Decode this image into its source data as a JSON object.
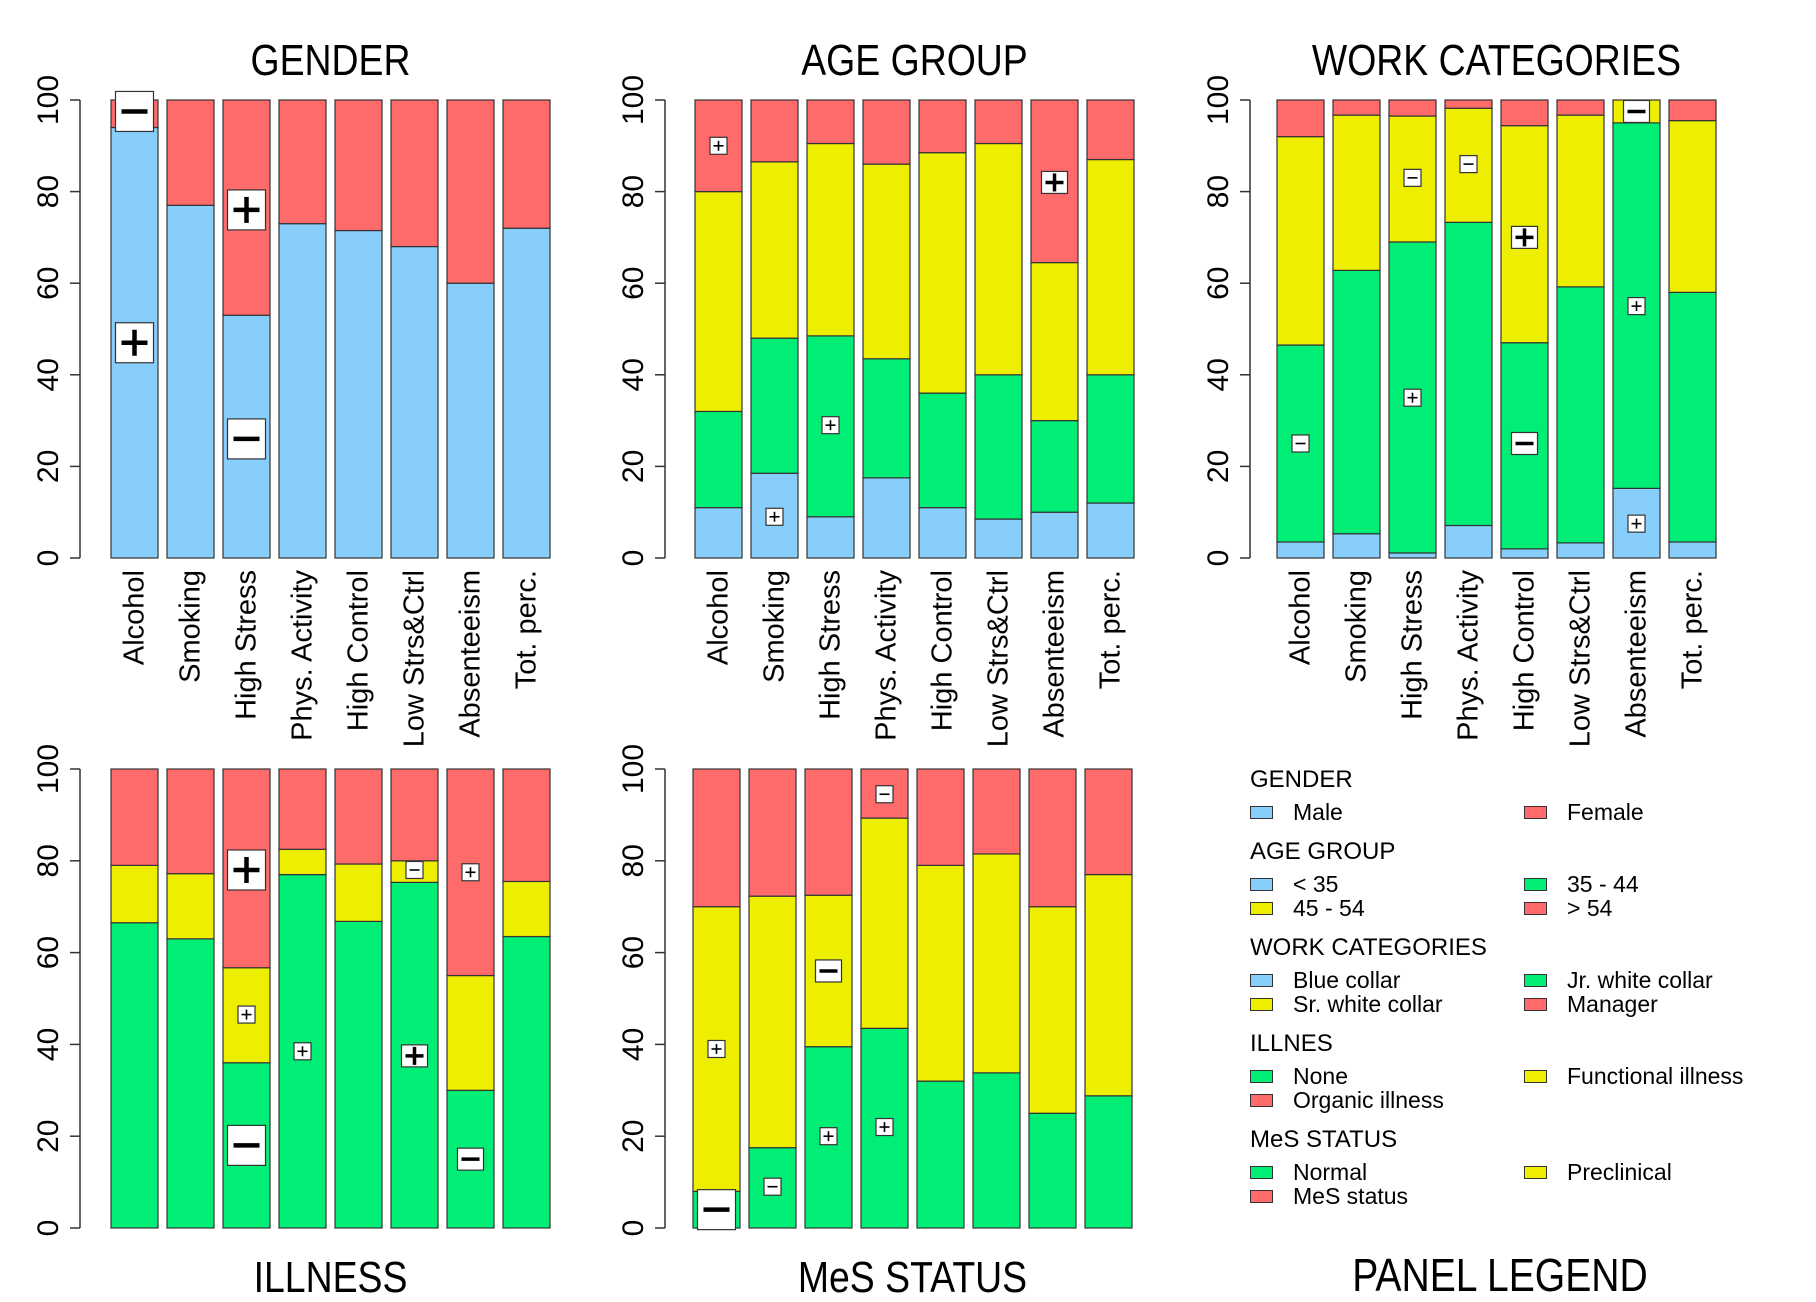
{
  "colors": {
    "blue": "#87CEFA",
    "green": "#00EE76",
    "yellow": "#EEEE00",
    "red": "#FF6A6A",
    "stroke": "#333333"
  },
  "chart_data": [
    {
      "type": "bar",
      "stacked": true,
      "title": "GENDER",
      "title_position": "top",
      "ylim": [
        0,
        100
      ],
      "yticks": [
        "0",
        "20",
        "40",
        "60",
        "80",
        "100"
      ],
      "categories": [
        "Alcohol",
        "Smoking",
        "High Stress",
        "Phys. Activity",
        "High Control",
        "Low Strs&Ctrl",
        "Absenteeism",
        "Tot. perc."
      ],
      "series": [
        {
          "name": "Male",
          "color": "blue",
          "values": [
            94,
            77,
            53,
            73,
            71.5,
            68,
            60,
            72
          ]
        },
        {
          "name": "Female",
          "color": "red",
          "values": [
            6,
            23,
            47,
            27,
            28.5,
            32,
            40,
            28
          ]
        }
      ],
      "markers": [
        {
          "category": 0,
          "y": 97.5,
          "sign": "-",
          "size": "large"
        },
        {
          "category": 0,
          "y": 47,
          "sign": "+",
          "size": "large"
        },
        {
          "category": 2,
          "y": 76,
          "sign": "+",
          "size": "large"
        },
        {
          "category": 2,
          "y": 26,
          "sign": "-",
          "size": "large"
        }
      ]
    },
    {
      "type": "bar",
      "stacked": true,
      "title": "AGE GROUP",
      "title_position": "top",
      "ylim": [
        0,
        100
      ],
      "yticks": [
        "0",
        "20",
        "40",
        "60",
        "80",
        "100"
      ],
      "categories": [
        "Alcohol",
        "Smoking",
        "High Stress",
        "Phys. Activity",
        "High Control",
        "Low Strs&Ctrl",
        "Absenteeism",
        "Tot. perc."
      ],
      "series": [
        {
          "name": "< 35",
          "color": "blue",
          "values": [
            11,
            18.5,
            9,
            17.5,
            11,
            8.5,
            10,
            12
          ]
        },
        {
          "name": "35 - 44",
          "color": "green",
          "values": [
            21,
            29.5,
            39.5,
            26,
            25,
            31.5,
            20,
            28
          ]
        },
        {
          "name": "45 - 54",
          "color": "yellow",
          "values": [
            48,
            38.5,
            42,
            42.5,
            52.5,
            50.5,
            34.5,
            47
          ]
        },
        {
          "name": "> 54",
          "color": "red",
          "values": [
            20,
            13.5,
            9.5,
            14,
            11.5,
            9.5,
            35.5,
            13
          ]
        }
      ],
      "markers": [
        {
          "category": 0,
          "y": 90,
          "sign": "+",
          "size": "small"
        },
        {
          "category": 1,
          "y": 9,
          "sign": "+",
          "size": "small"
        },
        {
          "category": 2,
          "y": 29,
          "sign": "+",
          "size": "small"
        },
        {
          "category": 6,
          "y": 82,
          "sign": "+",
          "size": "medium"
        }
      ]
    },
    {
      "type": "bar",
      "stacked": true,
      "title": "WORK CATEGORIES",
      "title_position": "top",
      "ylim": [
        0,
        100
      ],
      "yticks": [
        "0",
        "20",
        "40",
        "60",
        "80",
        "100"
      ],
      "categories": [
        "Alcohol",
        "Smoking",
        "High Stress",
        "Phys. Activity",
        "High Control",
        "Low Strs&Ctrl",
        "Absenteeism",
        "Tot. perc."
      ],
      "series": [
        {
          "name": "Blue collar",
          "color": "blue",
          "values": [
            3.5,
            5.3,
            1.1,
            7.1,
            2,
            3.3,
            15.2,
            3.5
          ]
        },
        {
          "name": "Jr. white collar",
          "color": "green",
          "values": [
            43,
            57.5,
            67.9,
            66.2,
            45,
            55.9,
            79.8,
            54.5
          ]
        },
        {
          "name": "Sr. white collar",
          "color": "yellow",
          "values": [
            45.5,
            33.9,
            27.5,
            24.9,
            47.4,
            37.5,
            5,
            37.5
          ]
        },
        {
          "name": "Manager",
          "color": "red",
          "values": [
            8,
            3.3,
            3.5,
            1.8,
            5.6,
            3.3,
            0,
            4.5
          ]
        }
      ],
      "markers": [
        {
          "category": 0,
          "y": 25,
          "sign": "-",
          "size": "small"
        },
        {
          "category": 2,
          "y": 83,
          "sign": "-",
          "size": "small"
        },
        {
          "category": 2,
          "y": 35,
          "sign": "+",
          "size": "small"
        },
        {
          "category": 3,
          "y": 86,
          "sign": "-",
          "size": "small"
        },
        {
          "category": 4,
          "y": 70,
          "sign": "+",
          "size": "medium"
        },
        {
          "category": 4,
          "y": 25,
          "sign": "-",
          "size": "medium"
        },
        {
          "category": 6,
          "y": 97.5,
          "sign": "-",
          "size": "medium"
        },
        {
          "category": 6,
          "y": 55,
          "sign": "+",
          "size": "small"
        },
        {
          "category": 6,
          "y": 7.5,
          "sign": "+",
          "size": "small"
        }
      ]
    },
    {
      "type": "bar",
      "stacked": true,
      "title": "ILLNESS",
      "title_position": "bottom",
      "ylim": [
        0,
        100
      ],
      "yticks": [
        "0",
        "20",
        "40",
        "60",
        "80",
        "100"
      ],
      "categories": [
        "Alcohol",
        "Smoking",
        "High Stress",
        "Phys. Activity",
        "High Control",
        "Low Strs&Ctrl",
        "Absenteeism",
        "Tot. perc."
      ],
      "series": [
        {
          "name": "None",
          "color": "green",
          "values": [
            66.5,
            63,
            36,
            77,
            66.8,
            75.3,
            30,
            63.5
          ]
        },
        {
          "name": "Functional illness",
          "color": "yellow",
          "values": [
            12.5,
            14.2,
            20.7,
            5.5,
            12.5,
            4.7,
            25,
            12
          ]
        },
        {
          "name": "Organic illness",
          "color": "red",
          "values": [
            21,
            22.8,
            43.3,
            17.5,
            20.7,
            20,
            45,
            24.5
          ]
        }
      ],
      "markers": [
        {
          "category": 2,
          "y": 78,
          "sign": "+",
          "size": "large"
        },
        {
          "category": 2,
          "y": 46.5,
          "sign": "+",
          "size": "small"
        },
        {
          "category": 2,
          "y": 18,
          "sign": "-",
          "size": "large"
        },
        {
          "category": 3,
          "y": 38.5,
          "sign": "+",
          "size": "small"
        },
        {
          "category": 5,
          "y": 78,
          "sign": "-",
          "size": "small"
        },
        {
          "category": 5,
          "y": 37.5,
          "sign": "+",
          "size": "medium"
        },
        {
          "category": 6,
          "y": 77.5,
          "sign": "+",
          "size": "small"
        },
        {
          "category": 6,
          "y": 15,
          "sign": "-",
          "size": "medium"
        }
      ]
    },
    {
      "type": "bar",
      "stacked": true,
      "title": "MeS STATUS",
      "title_position": "bottom",
      "ylim": [
        0,
        100
      ],
      "yticks": [
        "0",
        "20",
        "40",
        "60",
        "80",
        "100"
      ],
      "categories": [
        "Alcohol",
        "Smoking",
        "High Stress",
        "Phys. Activity",
        "High Control",
        "Low Strs&Ctrl",
        "Absenteeism",
        "Tot. perc."
      ],
      "series": [
        {
          "name": "Normal",
          "color": "green",
          "values": [
            8,
            17.5,
            39.5,
            43.5,
            32,
            33.8,
            25,
            28.8
          ]
        },
        {
          "name": "Preclinical",
          "color": "yellow",
          "values": [
            62,
            54.8,
            33,
            45.8,
            47,
            47.7,
            45,
            48.2
          ]
        },
        {
          "name": "MeS status",
          "color": "red",
          "values": [
            30,
            27.7,
            27.5,
            10.7,
            21,
            18.5,
            30,
            23
          ]
        }
      ],
      "markers": [
        {
          "category": 0,
          "y": 39,
          "sign": "+",
          "size": "small"
        },
        {
          "category": 0,
          "y": 4,
          "sign": "-",
          "size": "large"
        },
        {
          "category": 1,
          "y": 9,
          "sign": "-",
          "size": "small"
        },
        {
          "category": 2,
          "y": 56,
          "sign": "-",
          "size": "medium"
        },
        {
          "category": 2,
          "y": 20,
          "sign": "+",
          "size": "small"
        },
        {
          "category": 3,
          "y": 94.5,
          "sign": "-",
          "size": "small"
        },
        {
          "category": 3,
          "y": 22,
          "sign": "+",
          "size": "small"
        }
      ]
    }
  ],
  "legend": {
    "title": "PANEL LEGEND",
    "groups": [
      {
        "title": "GENDER",
        "left": [
          {
            "label": "Male",
            "color": "blue"
          }
        ],
        "right": [
          {
            "label": "Female",
            "color": "red"
          }
        ]
      },
      {
        "title": "AGE GROUP",
        "left": [
          {
            "label": "< 35",
            "color": "blue"
          },
          {
            "label": "45 - 54",
            "color": "yellow"
          }
        ],
        "right": [
          {
            "label": "35 - 44",
            "color": "green"
          },
          {
            "label": "> 54",
            "color": "red"
          }
        ]
      },
      {
        "title": "WORK CATEGORIES",
        "left": [
          {
            "label": "Blue collar",
            "color": "blue"
          },
          {
            "label": "Sr. white collar",
            "color": "yellow"
          }
        ],
        "right": [
          {
            "label": "Jr. white collar",
            "color": "green"
          },
          {
            "label": "Manager",
            "color": "red"
          }
        ]
      },
      {
        "title": "ILLNES",
        "left": [
          {
            "label": "None",
            "color": "green"
          },
          {
            "label": "Organic illness",
            "color": "red"
          }
        ],
        "right": [
          {
            "label": "Functional illness",
            "color": "yellow"
          }
        ]
      },
      {
        "title": "MeS STATUS",
        "left": [
          {
            "label": "Normal",
            "color": "green"
          },
          {
            "label": "MeS status",
            "color": "red"
          }
        ],
        "right": [
          {
            "label": "Preclinical",
            "color": "yellow"
          }
        ]
      }
    ]
  }
}
